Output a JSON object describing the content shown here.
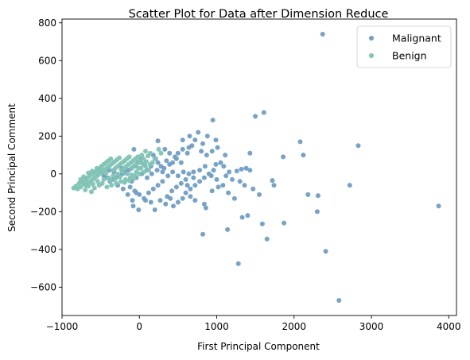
{
  "chart_data": {
    "type": "scatter",
    "title": "Scatter Plot for Data after Dimension Reduce",
    "xlabel": "First Principal Component",
    "ylabel": "Second Principal Comment",
    "xlim": [
      -1000,
      4100
    ],
    "ylim": [
      -750,
      820
    ],
    "xticks": [
      -1000,
      0,
      1000,
      2000,
      3000,
      4000
    ],
    "yticks": [
      -600,
      -400,
      -200,
      0,
      200,
      400,
      600,
      800
    ],
    "xtick_labels": [
      "−1000",
      "0",
      "1000",
      "2000",
      "3000",
      "4000"
    ],
    "ytick_labels": [
      "−600",
      "−400",
      "−200",
      "0",
      "200",
      "400",
      "600",
      "800"
    ],
    "grid": false,
    "legend_position": "top-right",
    "series": [
      {
        "name": "Malignant",
        "color": "#6f9ec5",
        "points": [
          [
            2370,
            740
          ],
          [
            2830,
            150
          ],
          [
            3870,
            -170
          ],
          [
            2720,
            -60
          ],
          [
            2580,
            -670
          ],
          [
            2410,
            -410
          ],
          [
            2300,
            -200
          ],
          [
            2310,
            -115
          ],
          [
            2180,
            -110
          ],
          [
            2120,
            100
          ],
          [
            2080,
            170
          ],
          [
            1860,
            90
          ],
          [
            1870,
            -260
          ],
          [
            1740,
            -60
          ],
          [
            1720,
            -35
          ],
          [
            1650,
            -345
          ],
          [
            1610,
            325
          ],
          [
            1590,
            -265
          ],
          [
            1500,
            305
          ],
          [
            1400,
            -220
          ],
          [
            1330,
            -230
          ],
          [
            1280,
            -475
          ],
          [
            1140,
            -295
          ],
          [
            1430,
            110
          ],
          [
            1430,
            20
          ],
          [
            1380,
            30
          ],
          [
            1320,
            25
          ],
          [
            1260,
            15
          ],
          [
            1360,
            -60
          ],
          [
            1300,
            -40
          ],
          [
            1200,
            -30
          ],
          [
            1160,
            10
          ],
          [
            1110,
            100
          ],
          [
            1090,
            40
          ],
          [
            1050,
            60
          ],
          [
            990,
            50
          ],
          [
            950,
            285
          ],
          [
            880,
            200
          ],
          [
            820,
            160
          ],
          [
            760,
            220
          ],
          [
            720,
            180
          ],
          [
            680,
            150
          ],
          [
            640,
            140
          ],
          [
            620,
            110
          ],
          [
            560,
            130
          ],
          [
            500,
            110
          ],
          [
            460,
            90
          ],
          [
            960,
            20
          ],
          [
            900,
            0
          ],
          [
            840,
            -20
          ],
          [
            780,
            -40
          ],
          [
            720,
            -60
          ],
          [
            660,
            -80
          ],
          [
            600,
            -30
          ],
          [
            540,
            60
          ],
          [
            480,
            80
          ],
          [
            430,
            60
          ],
          [
            390,
            50
          ],
          [
            350,
            70
          ],
          [
            320,
            30
          ],
          [
            280,
            40
          ],
          [
            240,
            60
          ],
          [
            210,
            80
          ],
          [
            180,
            100
          ],
          [
            150,
            40
          ],
          [
            100,
            20
          ],
          [
            60,
            50
          ],
          [
            20,
            80
          ],
          [
            -20,
            60
          ],
          [
            -60,
            40
          ],
          [
            -100,
            30
          ],
          [
            -140,
            20
          ],
          [
            -180,
            10
          ],
          [
            -220,
            0
          ],
          [
            -260,
            -10
          ],
          [
            -300,
            -20
          ],
          [
            -340,
            -30
          ],
          [
            -380,
            -40
          ],
          [
            -420,
            -20
          ],
          [
            -460,
            -10
          ],
          [
            -120,
            -70
          ],
          [
            -60,
            -90
          ],
          [
            0,
            -110
          ],
          [
            60,
            -130
          ],
          [
            120,
            -100
          ],
          [
            180,
            -80
          ],
          [
            240,
            -60
          ],
          [
            300,
            -40
          ],
          [
            360,
            -120
          ],
          [
            420,
            -90
          ],
          [
            480,
            -70
          ],
          [
            540,
            -50
          ],
          [
            600,
            -100
          ],
          [
            660,
            -120
          ],
          [
            720,
            -140
          ],
          [
            840,
            -160
          ],
          [
            860,
            -180
          ],
          [
            820,
            -320
          ],
          [
            440,
            -170
          ],
          [
            150,
            -150
          ],
          [
            -90,
            -140
          ],
          [
            -10,
            -190
          ],
          [
            -80,
            -170
          ],
          [
            200,
            -190
          ],
          [
            80,
            -140
          ],
          [
            -40,
            -100
          ],
          [
            -70,
            130
          ],
          [
            -280,
            -60
          ],
          [
            -210,
            -80
          ],
          [
            -150,
            -110
          ],
          [
            -100,
            -40
          ],
          [
            -40,
            -20
          ],
          [
            30,
            0
          ],
          [
            100,
            -20
          ],
          [
            160,
            0
          ],
          [
            230,
            20
          ],
          [
            300,
            10
          ],
          [
            370,
            -10
          ],
          [
            430,
            10
          ],
          [
            500,
            -10
          ],
          [
            570,
            10
          ],
          [
            640,
            0
          ],
          [
            700,
            -20
          ],
          [
            780,
            20
          ],
          [
            850,
            40
          ],
          [
            930,
            -10
          ],
          [
            1000,
            -30
          ],
          [
            1080,
            -60
          ],
          [
            1150,
            -100
          ],
          [
            1230,
            -130
          ],
          [
            1010,
            140
          ],
          [
            990,
            180
          ],
          [
            940,
            120
          ],
          [
            870,
            100
          ],
          [
            800,
            120
          ],
          [
            240,
            175
          ],
          [
            330,
            130
          ],
          [
            390,
            110
          ],
          [
            560,
            180
          ],
          [
            650,
            200
          ],
          [
            700,
            10
          ],
          [
            620,
            -60
          ],
          [
            560,
            -130
          ],
          [
            500,
            -150
          ],
          [
            400,
            -130
          ],
          [
            340,
            -160
          ],
          [
            270,
            -140
          ],
          [
            -230,
            30
          ],
          [
            -330,
            10
          ],
          [
            -390,
            20
          ],
          [
            1470,
            -80
          ],
          [
            1550,
            -110
          ],
          [
            940,
            -90
          ],
          [
            1020,
            -70
          ],
          [
            1120,
            -10
          ]
        ]
      },
      {
        "name": "Benign",
        "color": "#7fc3b3",
        "points": [
          [
            -850,
            -75
          ],
          [
            -800,
            -80
          ],
          [
            -820,
            -65
          ],
          [
            -780,
            -50
          ],
          [
            -760,
            -70
          ],
          [
            -740,
            -40
          ],
          [
            -720,
            -55
          ],
          [
            -700,
            -30
          ],
          [
            -690,
            -60
          ],
          [
            -670,
            -20
          ],
          [
            -650,
            -45
          ],
          [
            -640,
            -10
          ],
          [
            -620,
            -35
          ],
          [
            -600,
            0
          ],
          [
            -590,
            -25
          ],
          [
            -570,
            10
          ],
          [
            -560,
            -15
          ],
          [
            -540,
            20
          ],
          [
            -530,
            -5
          ],
          [
            -510,
            30
          ],
          [
            -500,
            5
          ],
          [
            -490,
            40
          ],
          [
            -470,
            15
          ],
          [
            -460,
            50
          ],
          [
            -440,
            25
          ],
          [
            -430,
            60
          ],
          [
            -410,
            35
          ],
          [
            -400,
            70
          ],
          [
            -380,
            45
          ],
          [
            -370,
            80
          ],
          [
            -350,
            55
          ],
          [
            -340,
            20
          ],
          [
            -320,
            65
          ],
          [
            -310,
            30
          ],
          [
            -290,
            75
          ],
          [
            -280,
            40
          ],
          [
            -260,
            85
          ],
          [
            -250,
            50
          ],
          [
            -230,
            20
          ],
          [
            -220,
            60
          ],
          [
            -200,
            30
          ],
          [
            -190,
            70
          ],
          [
            -170,
            40
          ],
          [
            -160,
            80
          ],
          [
            -140,
            50
          ],
          [
            -130,
            90
          ],
          [
            -110,
            60
          ],
          [
            -100,
            30
          ],
          [
            -80,
            70
          ],
          [
            -70,
            40
          ],
          [
            -50,
            80
          ],
          [
            -40,
            50
          ],
          [
            -20,
            90
          ],
          [
            -10,
            60
          ],
          [
            10,
            70
          ],
          [
            30,
            100
          ],
          [
            50,
            80
          ],
          [
            80,
            120
          ],
          [
            110,
            95
          ],
          [
            140,
            110
          ],
          [
            170,
            60
          ],
          [
            200,
            80
          ],
          [
            250,
            130
          ],
          [
            280,
            110
          ],
          [
            120,
            20
          ],
          [
            60,
            10
          ],
          [
            0,
            0
          ],
          [
            -60,
            -10
          ],
          [
            -120,
            -20
          ],
          [
            -180,
            -30
          ],
          [
            -240,
            -40
          ],
          [
            -300,
            -50
          ],
          [
            -360,
            -60
          ],
          [
            -420,
            -70
          ],
          [
            -480,
            -50
          ],
          [
            -540,
            -40
          ],
          [
            -600,
            -55
          ],
          [
            -660,
            -65
          ],
          [
            -620,
            -95
          ],
          [
            -700,
            -85
          ],
          [
            -580,
            -75
          ],
          [
            -520,
            -60
          ],
          [
            -460,
            -30
          ],
          [
            -400,
            -20
          ],
          [
            -340,
            -10
          ],
          [
            -280,
            0
          ],
          [
            -220,
            10
          ],
          [
            -160,
            0
          ],
          [
            -100,
            -5
          ],
          [
            -40,
            10
          ],
          [
            20,
            30
          ],
          [
            80,
            40
          ],
          [
            140,
            50
          ],
          [
            -720,
            -15
          ],
          [
            -660,
            5
          ],
          [
            -610,
            15
          ],
          [
            -550,
            30
          ],
          [
            -490,
            20
          ],
          [
            -430,
            5
          ],
          [
            -370,
            -35
          ],
          [
            -310,
            -25
          ],
          [
            -250,
            -15
          ],
          [
            -190,
            -45
          ],
          [
            -130,
            -35
          ],
          [
            -70,
            -25
          ],
          [
            -10,
            30
          ],
          [
            40,
            55
          ],
          [
            90,
            65
          ],
          [
            -760,
            -30
          ],
          [
            -690,
            -45
          ]
        ]
      }
    ]
  }
}
